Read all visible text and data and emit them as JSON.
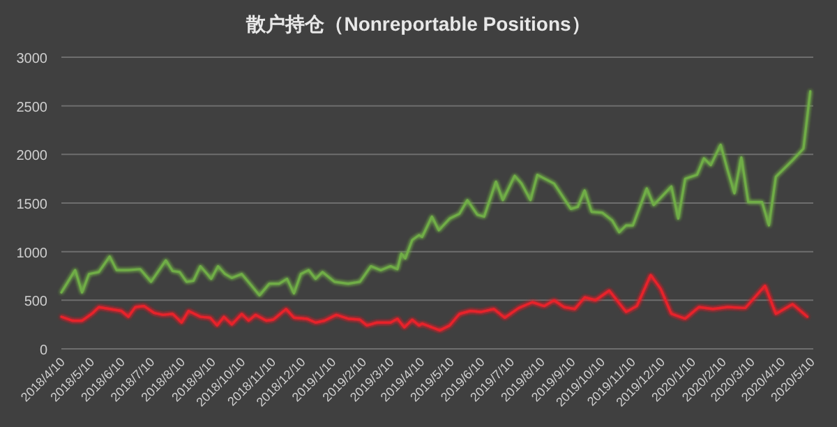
{
  "chart_data": {
    "type": "line",
    "title": "散户持仓（Nonreportable Positions）",
    "xlim": [
      "2018-04-10",
      "2020-05-12"
    ],
    "xticks": [
      {
        "value": "2018-04-10",
        "label": "2018/4/10"
      },
      {
        "value": "2018-05-10",
        "label": "2018/5/10"
      },
      {
        "value": "2018-06-10",
        "label": "2018/6/10"
      },
      {
        "value": "2018-07-10",
        "label": "2018/7/10"
      },
      {
        "value": "2018-08-10",
        "label": "2018/8/10"
      },
      {
        "value": "2018-09-10",
        "label": "2018/9/10"
      },
      {
        "value": "2018-10-10",
        "label": "2018/10/10"
      },
      {
        "value": "2018-11-10",
        "label": "2018/11/10"
      },
      {
        "value": "2018-12-10",
        "label": "2018/12/10"
      },
      {
        "value": "2019-01-10",
        "label": "2019/1/10"
      },
      {
        "value": "2019-02-10",
        "label": "2019/2/10"
      },
      {
        "value": "2019-03-10",
        "label": "2019/3/10"
      },
      {
        "value": "2019-04-10",
        "label": "2019/4/10"
      },
      {
        "value": "2019-05-10",
        "label": "2019/5/10"
      },
      {
        "value": "2019-06-10",
        "label": "2019/6/10"
      },
      {
        "value": "2019-07-10",
        "label": "2019/7/10"
      },
      {
        "value": "2019-08-10",
        "label": "2019/8/10"
      },
      {
        "value": "2019-09-10",
        "label": "2019/9/10"
      },
      {
        "value": "2019-10-10",
        "label": "2019/10/10"
      },
      {
        "value": "2019-11-10",
        "label": "2019/11/10"
      },
      {
        "value": "2019-12-10",
        "label": "2019/12/10"
      },
      {
        "value": "2020-01-10",
        "label": "2020/1/10"
      },
      {
        "value": "2020-02-10",
        "label": "2020/2/10"
      },
      {
        "value": "2020-03-10",
        "label": "2020/3/10"
      },
      {
        "value": "2020-04-10",
        "label": "2020/4/10"
      },
      {
        "value": "2020-05-10",
        "label": "2020/5/10"
      }
    ],
    "ylim": [
      0,
      3000
    ],
    "yticks": [
      0,
      500,
      1000,
      1500,
      2000,
      2500,
      3000
    ],
    "grid": "y",
    "line_style": "solid",
    "marker": "none",
    "series": [
      {
        "color": "#70ad47",
        "x": [
          "2018-04-10",
          "2018-04-24",
          "2018-05-01",
          "2018-05-08",
          "2018-05-18",
          "2018-05-29",
          "2018-06-05",
          "2018-06-17",
          "2018-06-29",
          "2018-07-10",
          "2018-07-25",
          "2018-08-01",
          "2018-08-08",
          "2018-08-15",
          "2018-08-22",
          "2018-08-29",
          "2018-09-05",
          "2018-09-09",
          "2018-09-16",
          "2018-09-23",
          "2018-09-30",
          "2018-10-10",
          "2018-10-20",
          "2018-10-28",
          "2018-11-07",
          "2018-11-17",
          "2018-11-25",
          "2018-12-02",
          "2018-12-09",
          "2018-12-17",
          "2018-12-24",
          "2018-12-31",
          "2019-01-12",
          "2019-01-26",
          "2019-02-07",
          "2019-02-18",
          "2019-02-28",
          "2019-03-10",
          "2019-03-17",
          "2019-03-21",
          "2019-03-25",
          "2019-04-01",
          "2019-04-08",
          "2019-04-11",
          "2019-04-21",
          "2019-04-28",
          "2019-05-09",
          "2019-05-19",
          "2019-05-27",
          "2019-06-06",
          "2019-06-13",
          "2019-06-25",
          "2019-07-02",
          "2019-07-14",
          "2019-07-21",
          "2019-07-30",
          "2019-08-06",
          "2019-08-23",
          "2019-09-09",
          "2019-09-16",
          "2019-09-23",
          "2019-09-30",
          "2019-10-11",
          "2019-10-21",
          "2019-10-28",
          "2019-11-04",
          "2019-11-11",
          "2019-11-25",
          "2019-12-02",
          "2019-12-20",
          "2019-12-27",
          "2020-01-03",
          "2020-01-15",
          "2020-01-22",
          "2020-01-29",
          "2020-02-08",
          "2020-02-15",
          "2020-02-22",
          "2020-02-29",
          "2020-03-07",
          "2020-03-21",
          "2020-03-28",
          "2020-04-04",
          "2020-04-21",
          "2020-05-02",
          "2020-05-09"
        ],
        "values": [
          580,
          810,
          580,
          770,
          790,
          950,
          810,
          810,
          820,
          690,
          910,
          800,
          790,
          690,
          700,
          850,
          770,
          720,
          850,
          770,
          730,
          770,
          650,
          550,
          670,
          670,
          720,
          570,
          770,
          810,
          720,
          790,
          690,
          670,
          690,
          850,
          810,
          850,
          820,
          980,
          930,
          1120,
          1170,
          1150,
          1360,
          1220,
          1340,
          1390,
          1530,
          1380,
          1360,
          1720,
          1530,
          1780,
          1700,
          1530,
          1790,
          1700,
          1440,
          1460,
          1630,
          1410,
          1400,
          1320,
          1200,
          1270,
          1270,
          1650,
          1480,
          1670,
          1340,
          1750,
          1790,
          1960,
          1890,
          2100,
          1840,
          1600,
          1970,
          1510,
          1510,
          1270,
          1770,
          1940,
          2060,
          2650
        ]
      },
      {
        "color": "#e8242c",
        "x": [
          "2018-04-10",
          "2018-04-21",
          "2018-05-01",
          "2018-05-12",
          "2018-05-18",
          "2018-05-29",
          "2018-06-10",
          "2018-06-17",
          "2018-06-24",
          "2018-07-03",
          "2018-07-13",
          "2018-07-22",
          "2018-08-01",
          "2018-08-10",
          "2018-08-17",
          "2018-08-29",
          "2018-09-08",
          "2018-09-15",
          "2018-09-22",
          "2018-09-30",
          "2018-10-10",
          "2018-10-17",
          "2018-10-24",
          "2018-11-04",
          "2018-11-11",
          "2018-11-24",
          "2018-12-02",
          "2018-12-15",
          "2018-12-24",
          "2019-01-02",
          "2019-01-14",
          "2019-01-26",
          "2019-02-07",
          "2019-02-14",
          "2019-02-24",
          "2019-03-10",
          "2019-03-17",
          "2019-03-24",
          "2019-04-01",
          "2019-04-08",
          "2019-04-11",
          "2019-04-29",
          "2019-05-09",
          "2019-05-19",
          "2019-05-30",
          "2019-06-10",
          "2019-06-23",
          "2019-07-04",
          "2019-07-18",
          "2019-08-01",
          "2019-08-13",
          "2019-08-23",
          "2019-09-02",
          "2019-09-13",
          "2019-09-23",
          "2019-10-04",
          "2019-10-18",
          "2019-11-04",
          "2019-11-15",
          "2019-11-29",
          "2019-12-09",
          "2019-12-20",
          "2020-01-03",
          "2020-01-17",
          "2020-01-31",
          "2020-02-15",
          "2020-03-04",
          "2020-03-24",
          "2020-04-04",
          "2020-04-21",
          "2020-05-06"
        ],
        "values": [
          330,
          290,
          290,
          370,
          430,
          410,
          390,
          330,
          430,
          440,
          370,
          350,
          360,
          270,
          390,
          330,
          320,
          240,
          330,
          250,
          360,
          290,
          350,
          290,
          300,
          410,
          320,
          310,
          270,
          290,
          350,
          310,
          300,
          240,
          270,
          270,
          310,
          220,
          300,
          240,
          260,
          190,
          240,
          360,
          390,
          380,
          410,
          320,
          420,
          480,
          440,
          500,
          430,
          410,
          530,
          500,
          600,
          380,
          440,
          760,
          620,
          360,
          310,
          430,
          410,
          430,
          420,
          650,
          360,
          460,
          330
        ]
      }
    ]
  }
}
